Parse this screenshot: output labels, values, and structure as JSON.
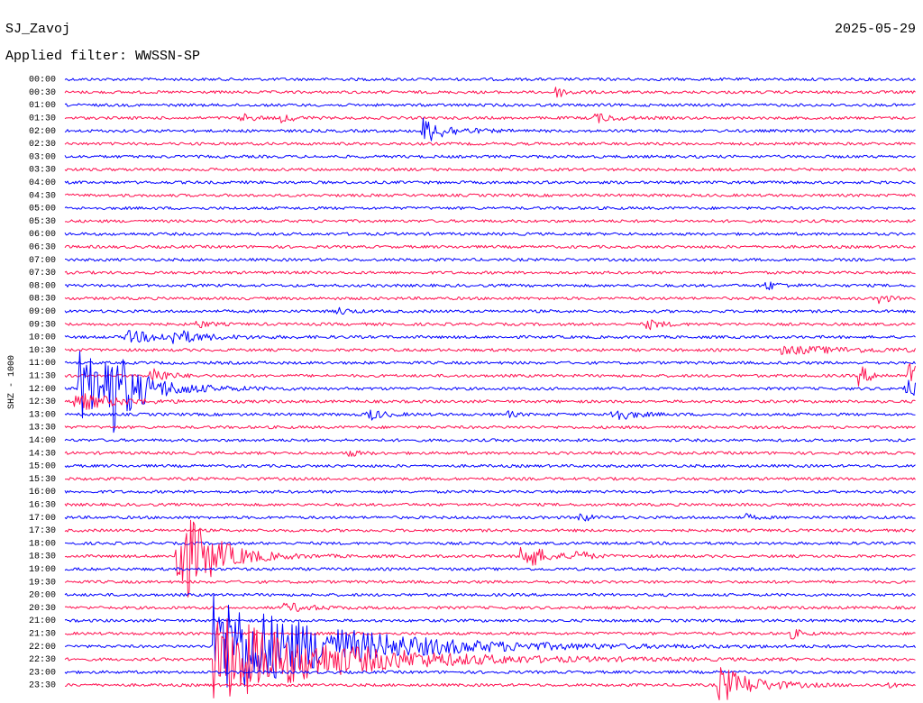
{
  "header": {
    "station": "SJ_Zavoj",
    "date": "2025-05-29",
    "filter": "Applied filter: WWSSN-SP"
  },
  "axis_label": "SHZ - 1000",
  "rows": [
    "00:00",
    "00:30",
    "01:00",
    "01:30",
    "02:00",
    "02:30",
    "03:00",
    "03:30",
    "04:00",
    "04:30",
    "05:00",
    "05:30",
    "06:00",
    "06:30",
    "07:00",
    "07:30",
    "08:00",
    "08:30",
    "09:00",
    "09:30",
    "10:00",
    "10:30",
    "11:00",
    "11:30",
    "12:00",
    "12:30",
    "13:00",
    "13:30",
    "14:00",
    "14:30",
    "15:00",
    "15:30",
    "16:00",
    "16:30",
    "17:00",
    "17:30",
    "18:00",
    "18:30",
    "19:00",
    "19:30",
    "20:00",
    "20:30",
    "21:00",
    "21:30",
    "22:00",
    "22:30",
    "23:00",
    "23:30"
  ]
}
